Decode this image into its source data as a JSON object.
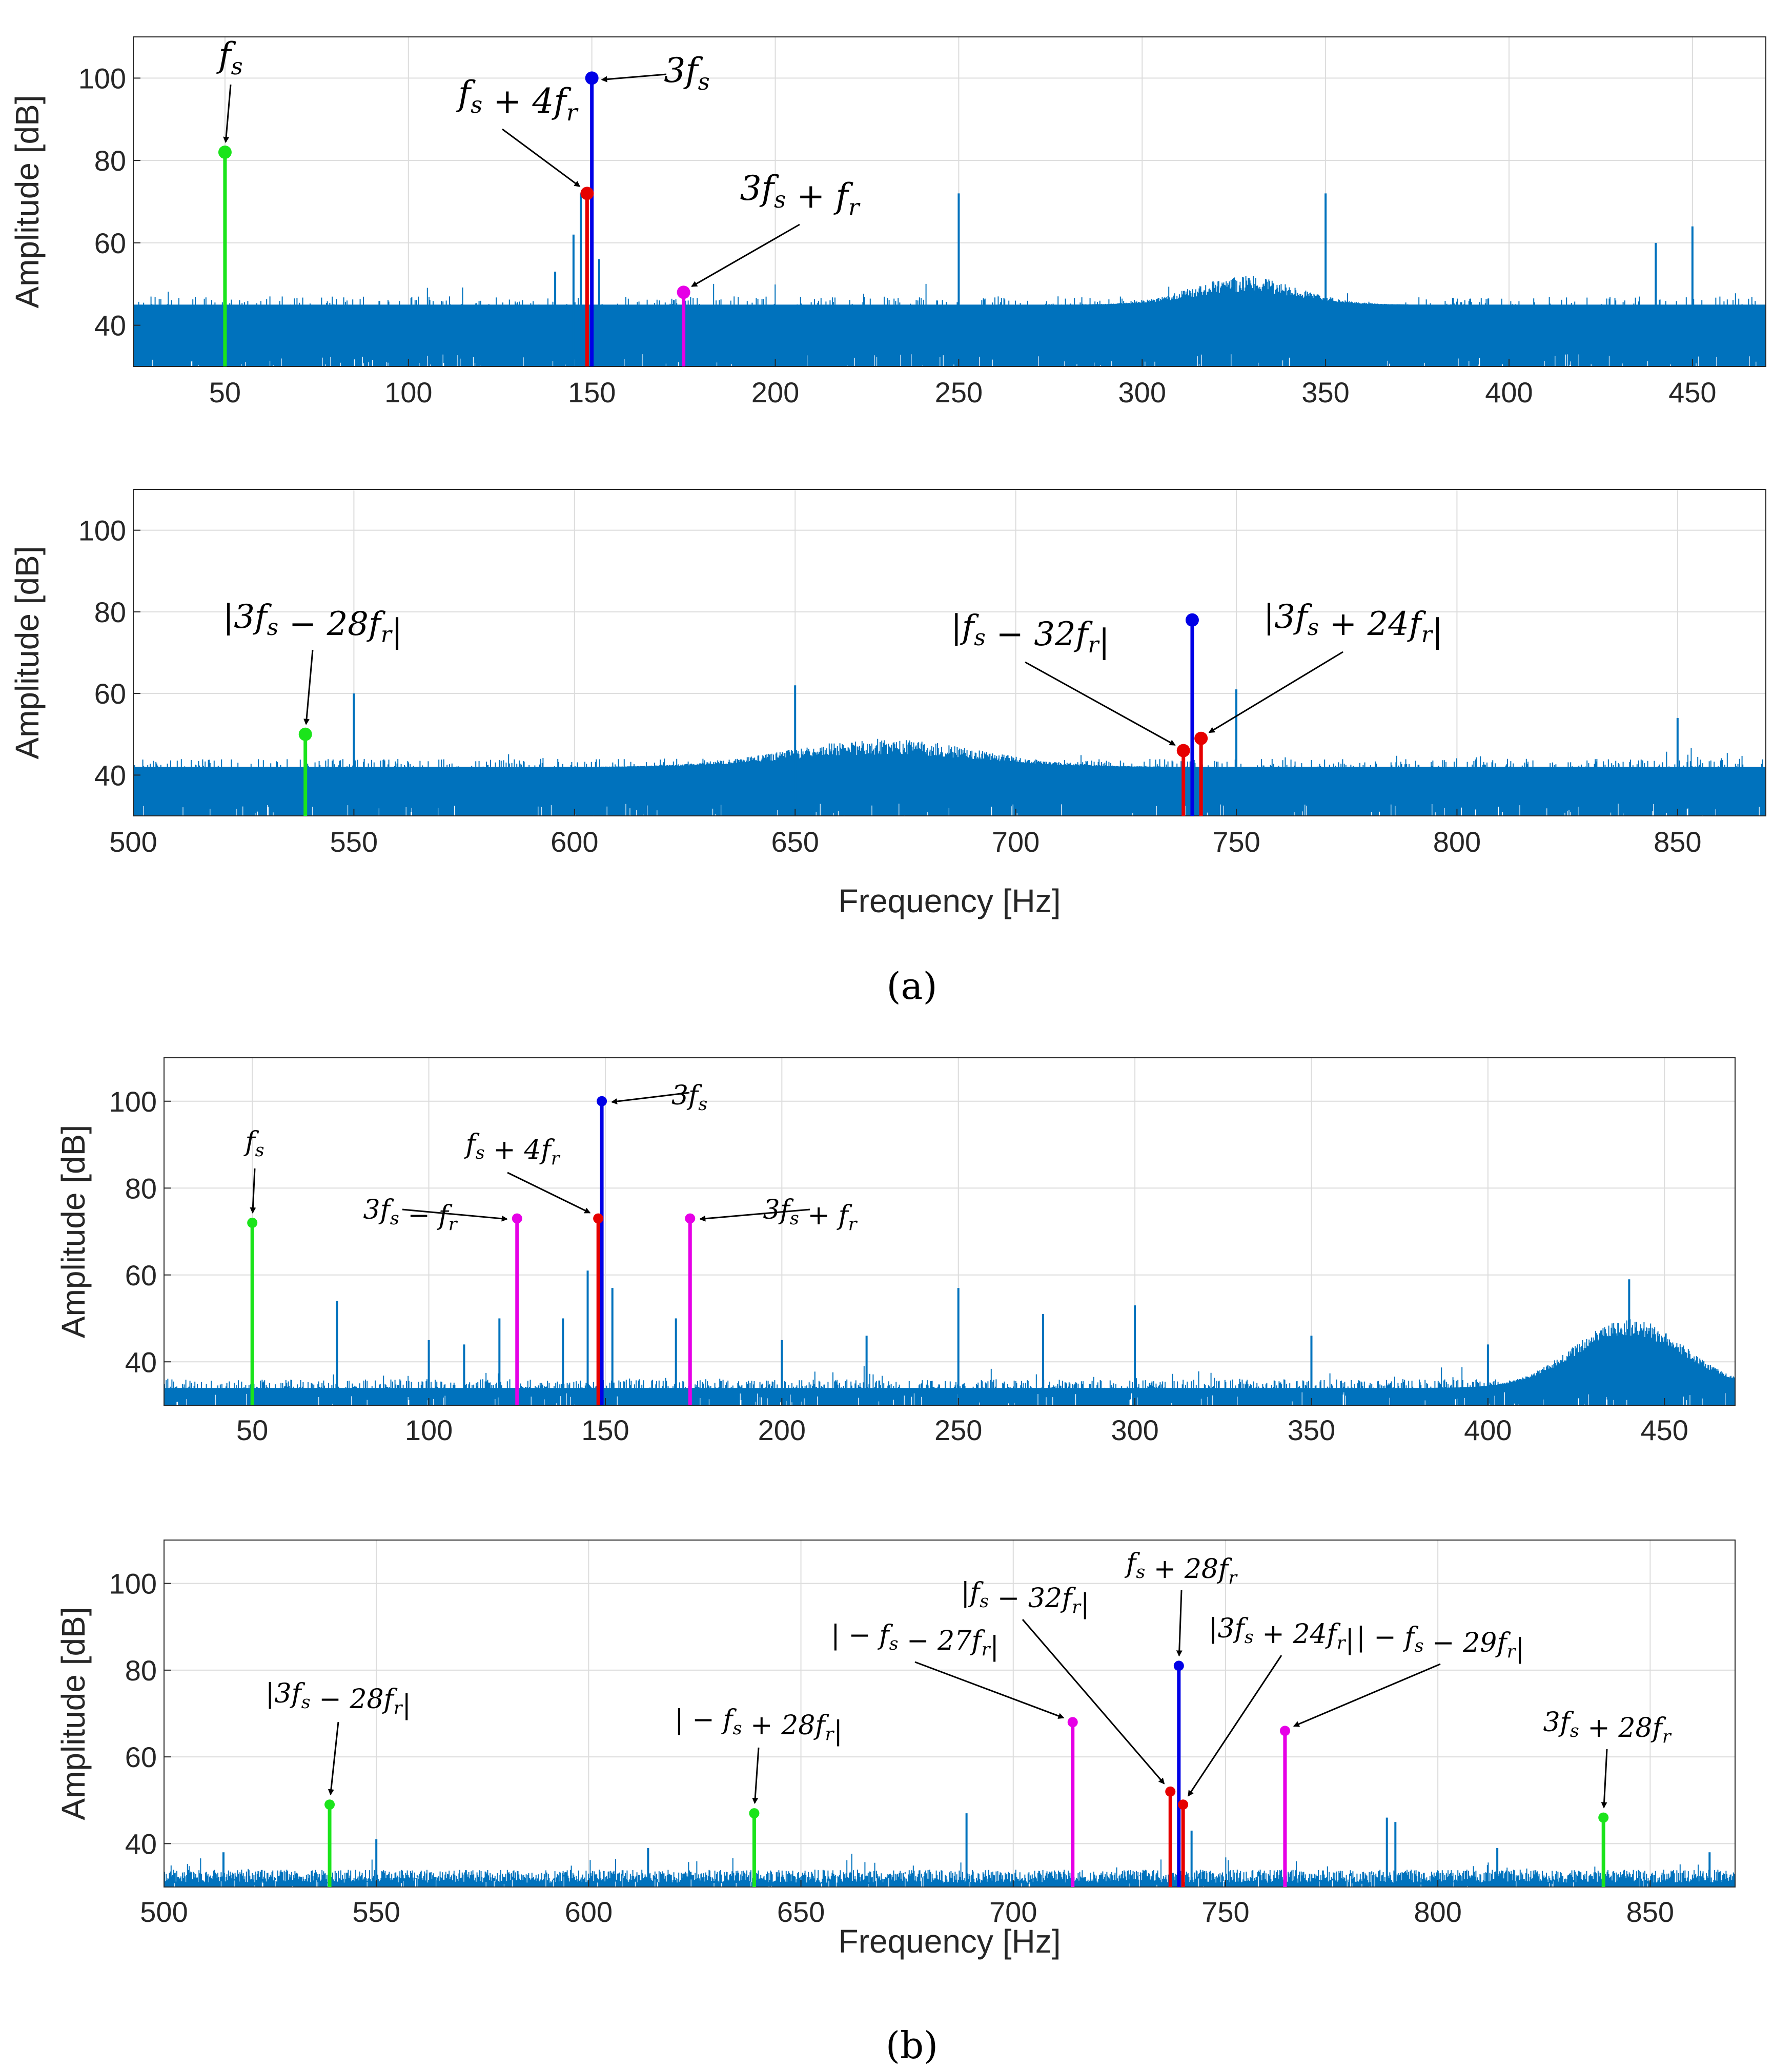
{
  "figure": {
    "caption_a": "(a)",
    "caption_b": "(b)"
  },
  "colors": {
    "spectrum": "#0072BD",
    "green": "#1BE41B",
    "blue": "#0000E6",
    "red": "#E60000",
    "magenta": "#E600E6"
  },
  "chart_data": [
    {
      "type": "stem-over-spectrum",
      "panel": "a-top",
      "xlabel": "",
      "ylabel": "Amplitude [dB]",
      "xlim": [
        25,
        470
      ],
      "ylim": [
        30,
        110
      ],
      "xticks": [
        50,
        100,
        150,
        200,
        250,
        300,
        350,
        400,
        450
      ],
      "yticks": [
        40,
        60,
        80,
        100
      ],
      "noise": {
        "floor_range": [
          36,
          47
        ],
        "bump": {
          "center": 328,
          "width": 20,
          "peak": 50
        }
      },
      "spectrum_peaks": [
        {
          "x": 140,
          "y": 53
        },
        {
          "x": 145,
          "y": 62
        },
        {
          "x": 147,
          "y": 72
        },
        {
          "x": 152,
          "y": 56
        },
        {
          "x": 250,
          "y": 72
        },
        {
          "x": 350,
          "y": 72
        },
        {
          "x": 440,
          "y": 60
        },
        {
          "x": 450,
          "y": 64
        }
      ],
      "markers": [
        {
          "x": 50,
          "y": 82,
          "color": "green",
          "label": "f_s"
        },
        {
          "x": 150,
          "y": 100,
          "color": "blue",
          "label": "3f_s"
        },
        {
          "x": 148.7,
          "y": 72,
          "color": "red",
          "label": "f_s + 4f_r"
        },
        {
          "x": 175,
          "y": 48,
          "color": "magenta",
          "label": "3f_s + f_r"
        }
      ]
    },
    {
      "type": "stem-over-spectrum",
      "panel": "a-bottom",
      "xlabel": "Frequency [Hz]",
      "ylabel": "Amplitude [dB]",
      "xlim": [
        500,
        870
      ],
      "ylim": [
        30,
        110
      ],
      "xticks": [
        500,
        550,
        600,
        650,
        700,
        750,
        800,
        850
      ],
      "yticks": [
        40,
        60,
        80,
        100
      ],
      "noise": {
        "floor_range": [
          35,
          44
        ],
        "bump": {
          "center": 670,
          "width": 30,
          "peak": 47
        }
      },
      "spectrum_peaks": [
        {
          "x": 550,
          "y": 60
        },
        {
          "x": 650,
          "y": 62
        },
        {
          "x": 750,
          "y": 61
        },
        {
          "x": 850,
          "y": 54
        }
      ],
      "markers": [
        {
          "x": 539,
          "y": 50,
          "color": "green",
          "label": "|3f_s − 28f_r|"
        },
        {
          "x": 740,
          "y": 78,
          "color": "blue",
          "label": ""
        },
        {
          "x": 738,
          "y": 46,
          "color": "red",
          "label": "|f_s − 32f_r|"
        },
        {
          "x": 742,
          "y": 49,
          "color": "red",
          "label": "|3f_s + 24f_r|"
        }
      ]
    },
    {
      "type": "stem-over-spectrum",
      "panel": "b-top",
      "xlabel": "",
      "ylabel": "Amplitude [dB]",
      "xlim": [
        25,
        470
      ],
      "ylim": [
        30,
        110
      ],
      "xticks": [
        50,
        100,
        150,
        200,
        250,
        300,
        350,
        400,
        450
      ],
      "yticks": [
        40,
        60,
        80,
        100
      ],
      "noise": {
        "floor_range": [
          31,
          36
        ],
        "bump": {
          "center": 440,
          "width": 22,
          "peak": 48
        }
      },
      "spectrum_peaks": [
        {
          "x": 74,
          "y": 54
        },
        {
          "x": 100,
          "y": 45
        },
        {
          "x": 110,
          "y": 44
        },
        {
          "x": 120,
          "y": 50
        },
        {
          "x": 138,
          "y": 50
        },
        {
          "x": 145,
          "y": 61
        },
        {
          "x": 152,
          "y": 57
        },
        {
          "x": 170,
          "y": 50
        },
        {
          "x": 200,
          "y": 45
        },
        {
          "x": 224,
          "y": 46
        },
        {
          "x": 250,
          "y": 57
        },
        {
          "x": 274,
          "y": 51
        },
        {
          "x": 300,
          "y": 53
        },
        {
          "x": 350,
          "y": 46
        },
        {
          "x": 400,
          "y": 44
        },
        {
          "x": 440,
          "y": 59
        }
      ],
      "markers": [
        {
          "x": 50,
          "y": 72,
          "color": "green",
          "label": "f_s"
        },
        {
          "x": 149,
          "y": 100,
          "color": "blue",
          "label": "3f_s"
        },
        {
          "x": 148,
          "y": 73,
          "color": "red",
          "label": "f_s + 4f_r"
        },
        {
          "x": 125,
          "y": 73,
          "color": "magenta",
          "label": "3f_s − f_r"
        },
        {
          "x": 174,
          "y": 73,
          "color": "magenta",
          "label": "3f_s + f_r"
        }
      ]
    },
    {
      "type": "stem-over-spectrum",
      "panel": "b-bottom",
      "xlabel": "Frequency [Hz]",
      "ylabel": "Amplitude [dB]",
      "xlim": [
        500,
        870
      ],
      "ylim": [
        30,
        110
      ],
      "xticks": [
        500,
        550,
        600,
        650,
        700,
        750,
        800,
        850
      ],
      "yticks": [
        40,
        60,
        80,
        100
      ],
      "noise": {
        "floor_range": [
          31,
          34
        ],
        "bump": null
      },
      "spectrum_peaks": [
        {
          "x": 514,
          "y": 38
        },
        {
          "x": 550,
          "y": 41
        },
        {
          "x": 614,
          "y": 39
        },
        {
          "x": 689,
          "y": 47
        },
        {
          "x": 742,
          "y": 43
        },
        {
          "x": 764,
          "y": 42
        },
        {
          "x": 788,
          "y": 46
        },
        {
          "x": 790,
          "y": 45
        },
        {
          "x": 814,
          "y": 39
        },
        {
          "x": 864,
          "y": 38
        }
      ],
      "markers": [
        {
          "x": 539,
          "y": 49,
          "color": "green",
          "label": "|3f_s − 28f_r|"
        },
        {
          "x": 639,
          "y": 47,
          "color": "green",
          "label": "| − f_s + 28f_r|"
        },
        {
          "x": 714,
          "y": 68,
          "color": "magenta",
          "label": "| − f_s − 27f_r|"
        },
        {
          "x": 737,
          "y": 52,
          "color": "red",
          "label": "|f_s − 32f_r|"
        },
        {
          "x": 739,
          "y": 81,
          "color": "blue",
          "label": "f_s + 28f_r"
        },
        {
          "x": 740,
          "y": 49,
          "color": "red",
          "label": "|3f_s + 24f_r|"
        },
        {
          "x": 764,
          "y": 66,
          "color": "magenta",
          "label": "| − f_s − 29f_r|"
        },
        {
          "x": 839,
          "y": 46,
          "color": "green",
          "label": "3f_s + 28f_r"
        }
      ]
    }
  ]
}
